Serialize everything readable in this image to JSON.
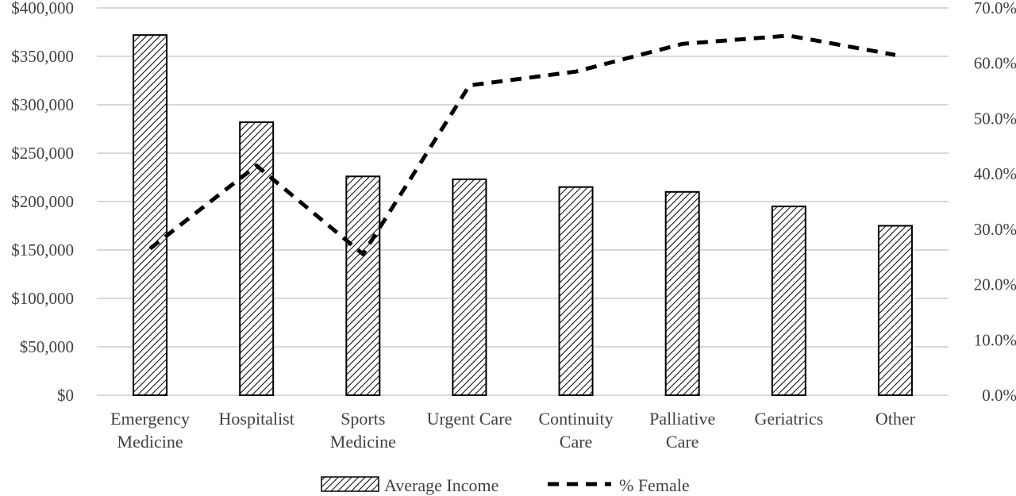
{
  "chart_data": {
    "type": "bar",
    "categories": [
      [
        "Emergency",
        "Medicine"
      ],
      [
        "Hospitalist"
      ],
      [
        "Sports",
        "Medicine"
      ],
      [
        "Urgent Care"
      ],
      [
        "Continuity",
        "Care"
      ],
      [
        "Palliative",
        "Care"
      ],
      [
        "Geriatrics"
      ],
      [
        "Other"
      ]
    ],
    "series": [
      {
        "name": "Average Income",
        "type": "bar",
        "axis": "left",
        "pattern": "diagonal-hatch",
        "values": [
          372000,
          282000,
          226000,
          223000,
          215000,
          210000,
          195000,
          175000
        ]
      },
      {
        "name": "% Female",
        "type": "line",
        "axis": "right",
        "style": "dashed",
        "values": [
          26.5,
          41.5,
          25.5,
          56.0,
          58.5,
          63.5,
          65.0,
          61.5
        ]
      }
    ],
    "y_left": {
      "min": 0,
      "max": 400000,
      "ticks": [
        "$0",
        "$50,000",
        "$100,000",
        "$150,000",
        "$200,000",
        "$250,000",
        "$300,000",
        "$350,000",
        "$400,000"
      ]
    },
    "y_right": {
      "min": 0,
      "max": 70,
      "ticks": [
        "0.0%",
        "10.0%",
        "20.0%",
        "30.0%",
        "40.0%",
        "50.0%",
        "60.0%",
        "70.0%"
      ]
    },
    "grid": true,
    "legend": "bottom",
    "colors": {
      "bar_stroke": "#000000",
      "line": "#000000",
      "grid": "#d9d9d9",
      "text": "#404040"
    }
  }
}
